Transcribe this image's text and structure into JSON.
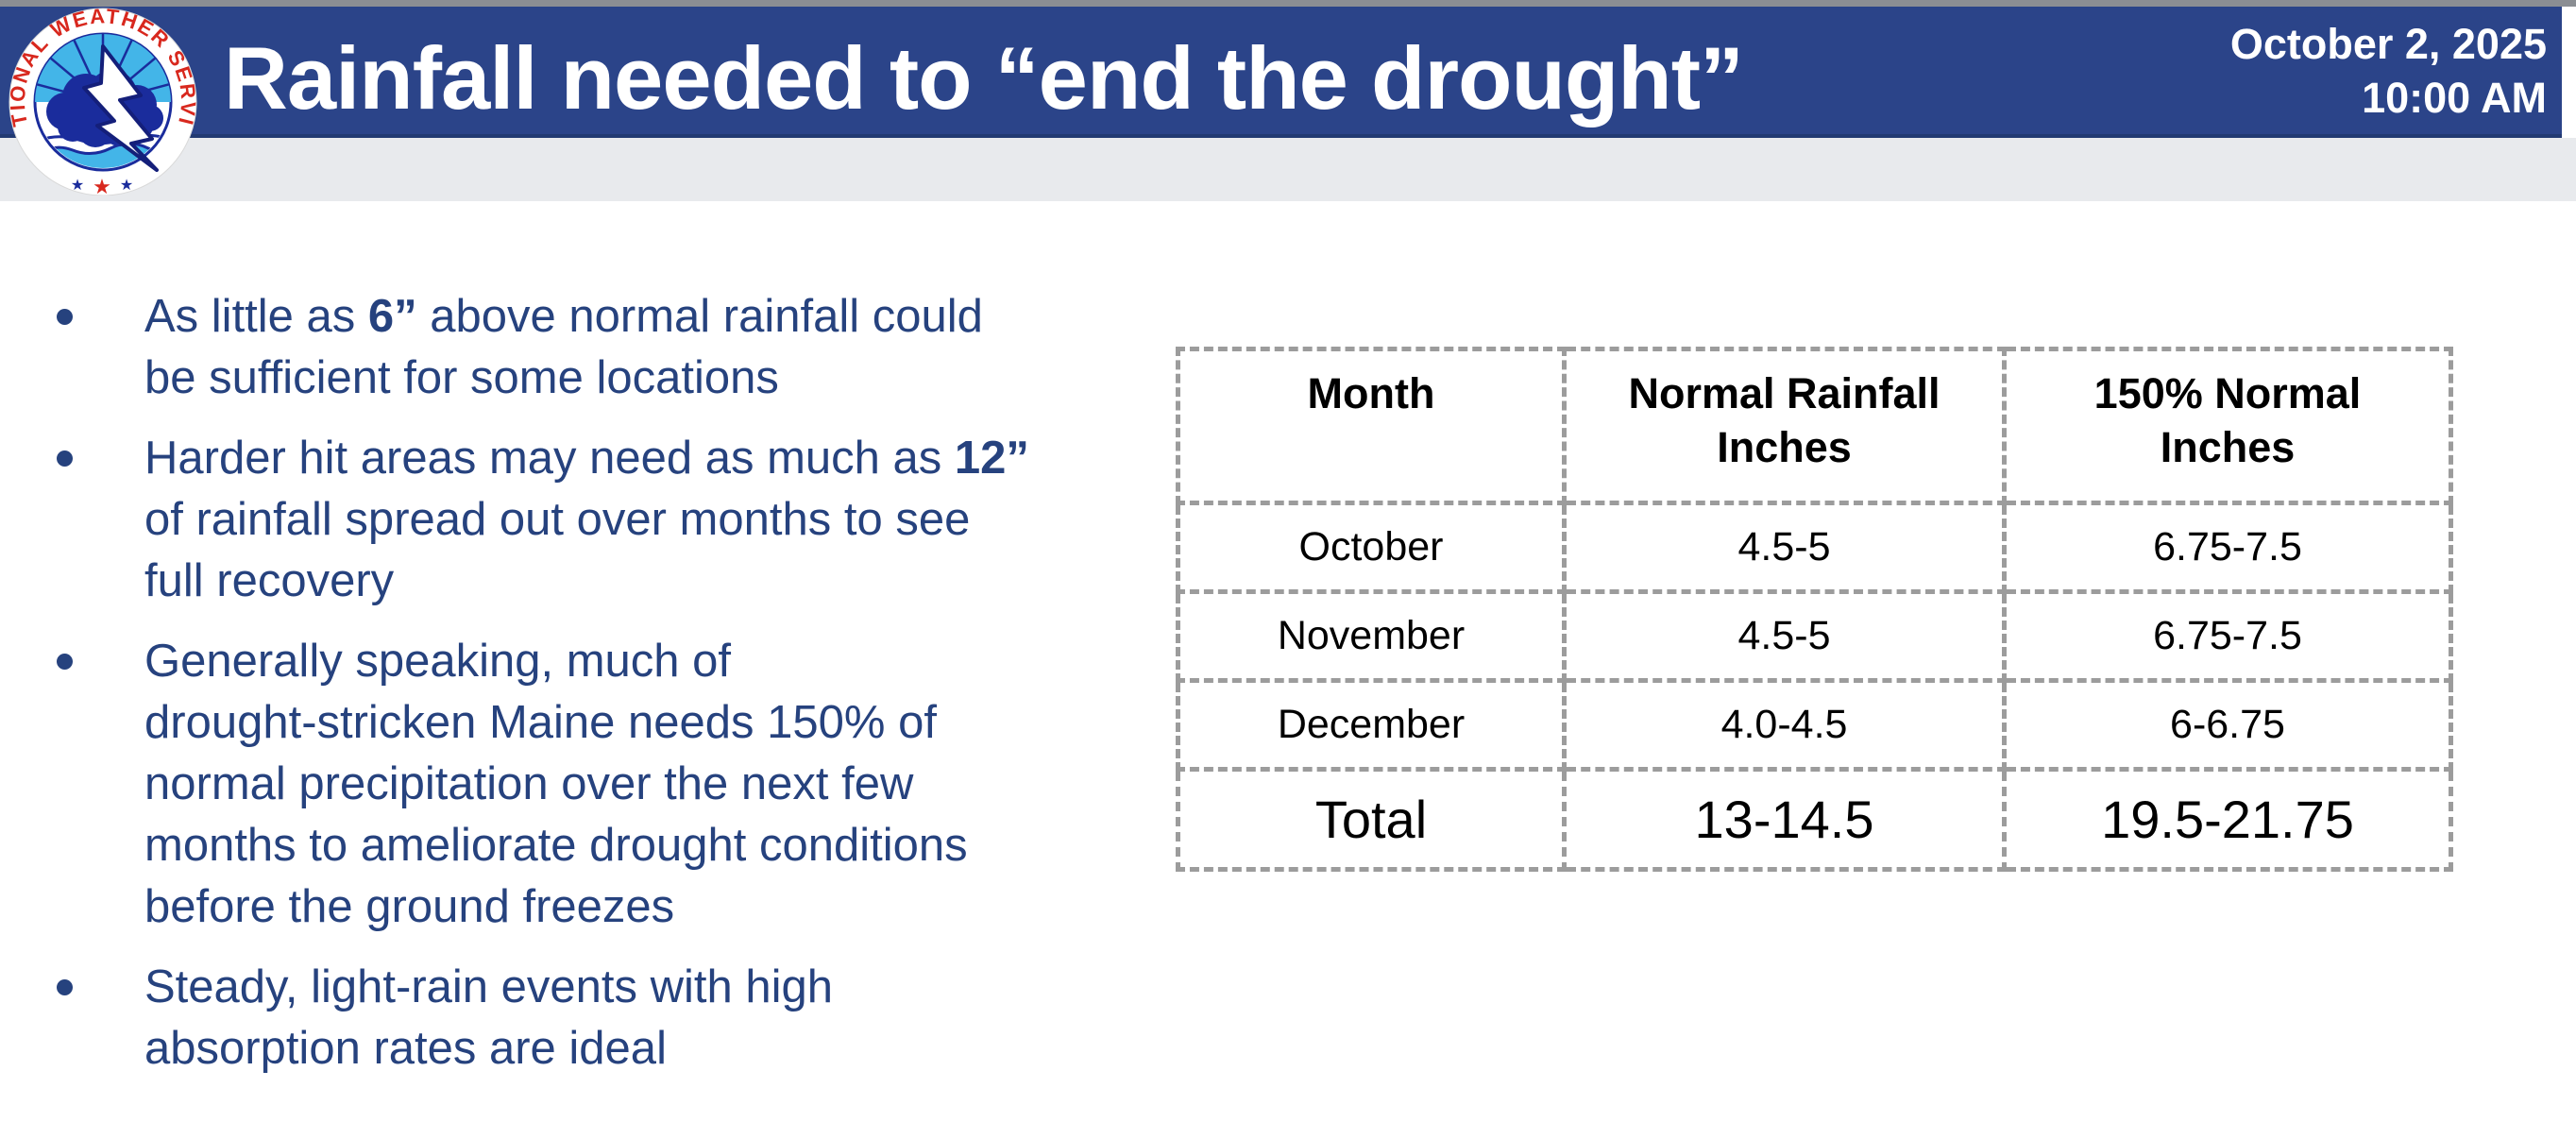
{
  "header": {
    "title": "Rainfall needed to “end the drought”",
    "date_line1": "October 2, 2025",
    "date_line2": "10:00 AM",
    "bar_color": "#2b4489",
    "top_strip_color": "#8b8e93",
    "band_color": "#e8eaed",
    "title_color": "#ffffff"
  },
  "logo": {
    "ring_text": "NATIONAL WEATHER SERVICE",
    "stars": [
      "★",
      "★",
      "★"
    ],
    "colors": {
      "red": "#d8281e",
      "navy": "#1a2c9c",
      "sky": "#43b5e8",
      "white": "#ffffff"
    }
  },
  "bullets": [
    {
      "segments": [
        {
          "t": "As little as "
        },
        {
          "t": "6”",
          "b": true
        },
        {
          "t": " above normal rainfall could\nbe sufficient for some locations"
        }
      ]
    },
    {
      "segments": [
        {
          "t": "Harder hit areas may need as much as "
        },
        {
          "t": "12”",
          "b": true
        },
        {
          "t": "\nof rainfall spread out over months to see\nfull recovery"
        }
      ]
    },
    {
      "segments": [
        {
          "t": "Generally speaking, much of\ndrought-stricken Maine needs 150% of\nnormal precipitation over the next few\nmonths to ameliorate drought conditions\nbefore the ground freezes"
        }
      ]
    },
    {
      "segments": [
        {
          "t": "Steady, light-rain events with high\nabsorption rates are ideal"
        }
      ]
    }
  ],
  "table": {
    "headers": [
      "Month",
      "Normal Rainfall\nInches",
      "150% Normal\nInches"
    ],
    "rows": [
      [
        "October",
        "4.5-5",
        "6.75-7.5"
      ],
      [
        "November",
        "4.5-5",
        "6.75-7.5"
      ],
      [
        "December",
        "4.0-4.5",
        "6-6.75"
      ]
    ],
    "total_row": [
      "Total",
      "13-14.5",
      "19.5-21.75"
    ],
    "border_color": "#9c9c9c",
    "text_color": "#000000"
  },
  "colors": {
    "bullet_text": "#26427e",
    "background": "#ffffff"
  }
}
